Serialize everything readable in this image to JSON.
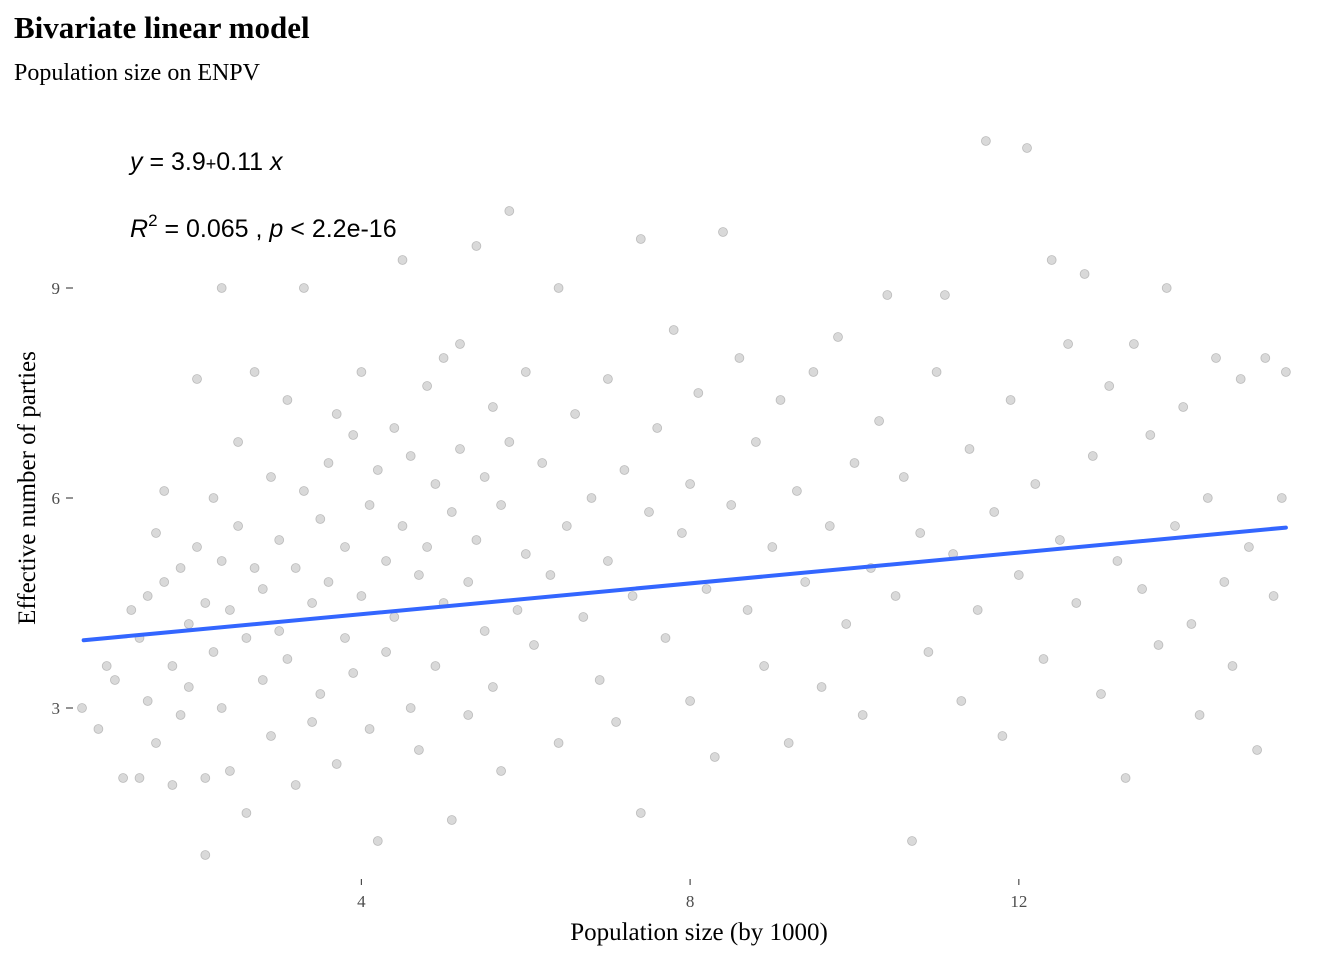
{
  "chart_data": {
    "type": "scatter",
    "title": "Bivariate linear model",
    "subtitle": "Population size on ENPV",
    "xlabel": "Population size (by 1000)",
    "ylabel": "Effective number of parties",
    "xlim": [
      0.6,
      15.3
    ],
    "ylim": [
      0.6,
      11.4
    ],
    "x_ticks": [
      4,
      8,
      12
    ],
    "y_ticks": [
      3,
      6,
      9
    ],
    "grid": false,
    "legend": "none",
    "annotations": {
      "equation": {
        "y": "y",
        "eq": " = 3.9",
        "plus": "+",
        "slope": "0.11 ",
        "x": "x"
      },
      "stats": {
        "r": "R",
        "sup": "2",
        "r2": " = 0.065 , ",
        "p": "p",
        "pval": " < 2.2e-16"
      }
    },
    "regression": {
      "intercept": 3.9,
      "slope": 0.11,
      "x_range": [
        0.62,
        15.25
      ],
      "color": "#3366FF"
    },
    "points_color": "#000000",
    "points_alpha": 0.15,
    "points": [
      [
        0.6,
        3.0
      ],
      [
        0.8,
        2.7
      ],
      [
        0.9,
        3.6
      ],
      [
        1.0,
        3.4
      ],
      [
        1.1,
        2.0
      ],
      [
        1.2,
        4.4
      ],
      [
        1.3,
        4.0
      ],
      [
        1.3,
        2.0
      ],
      [
        1.4,
        4.6
      ],
      [
        1.4,
        3.1
      ],
      [
        1.5,
        5.5
      ],
      [
        1.5,
        2.5
      ],
      [
        1.6,
        6.1
      ],
      [
        1.6,
        4.8
      ],
      [
        1.7,
        3.6
      ],
      [
        1.7,
        1.9
      ],
      [
        1.8,
        5.0
      ],
      [
        1.8,
        2.9
      ],
      [
        1.9,
        4.2
      ],
      [
        1.9,
        3.3
      ],
      [
        2.0,
        7.7
      ],
      [
        2.0,
        5.3
      ],
      [
        2.1,
        4.5
      ],
      [
        2.1,
        2.0
      ],
      [
        2.1,
        0.9
      ],
      [
        2.2,
        6.0
      ],
      [
        2.2,
        3.8
      ],
      [
        2.3,
        9.0
      ],
      [
        2.3,
        5.1
      ],
      [
        2.3,
        3.0
      ],
      [
        2.4,
        4.4
      ],
      [
        2.4,
        2.1
      ],
      [
        2.5,
        6.8
      ],
      [
        2.5,
        5.6
      ],
      [
        2.6,
        4.0
      ],
      [
        2.6,
        1.5
      ],
      [
        2.7,
        7.8
      ],
      [
        2.7,
        5.0
      ],
      [
        2.8,
        4.7
      ],
      [
        2.8,
        3.4
      ],
      [
        2.9,
        6.3
      ],
      [
        2.9,
        2.6
      ],
      [
        3.0,
        5.4
      ],
      [
        3.0,
        4.1
      ],
      [
        3.1,
        7.4
      ],
      [
        3.1,
        3.7
      ],
      [
        3.2,
        5.0
      ],
      [
        3.2,
        1.9
      ],
      [
        3.3,
        9.0
      ],
      [
        3.3,
        6.1
      ],
      [
        3.4,
        4.5
      ],
      [
        3.4,
        2.8
      ],
      [
        3.5,
        5.7
      ],
      [
        3.5,
        3.2
      ],
      [
        3.6,
        6.5
      ],
      [
        3.6,
        4.8
      ],
      [
        3.7,
        7.2
      ],
      [
        3.7,
        2.2
      ],
      [
        3.8,
        5.3
      ],
      [
        3.8,
        4.0
      ],
      [
        3.9,
        6.9
      ],
      [
        3.9,
        3.5
      ],
      [
        4.0,
        7.8
      ],
      [
        4.0,
        4.6
      ],
      [
        4.1,
        5.9
      ],
      [
        4.1,
        2.7
      ],
      [
        4.2,
        6.4
      ],
      [
        4.2,
        1.1
      ],
      [
        4.3,
        5.1
      ],
      [
        4.3,
        3.8
      ],
      [
        4.4,
        7.0
      ],
      [
        4.4,
        4.3
      ],
      [
        4.5,
        9.4
      ],
      [
        4.5,
        5.6
      ],
      [
        4.6,
        6.6
      ],
      [
        4.6,
        3.0
      ],
      [
        4.7,
        4.9
      ],
      [
        4.7,
        2.4
      ],
      [
        4.8,
        7.6
      ],
      [
        4.8,
        5.3
      ],
      [
        4.9,
        6.2
      ],
      [
        4.9,
        3.6
      ],
      [
        5.0,
        8.0
      ],
      [
        5.0,
        4.5
      ],
      [
        5.1,
        5.8
      ],
      [
        5.1,
        1.4
      ],
      [
        5.2,
        8.2
      ],
      [
        5.2,
        6.7
      ],
      [
        5.3,
        4.8
      ],
      [
        5.3,
        2.9
      ],
      [
        5.4,
        9.6
      ],
      [
        5.4,
        5.4
      ],
      [
        5.5,
        6.3
      ],
      [
        5.5,
        4.1
      ],
      [
        5.6,
        7.3
      ],
      [
        5.6,
        3.3
      ],
      [
        5.7,
        5.9
      ],
      [
        5.7,
        2.1
      ],
      [
        5.8,
        10.1
      ],
      [
        5.8,
        6.8
      ],
      [
        5.9,
        4.4
      ],
      [
        6.0,
        7.8
      ],
      [
        6.0,
        5.2
      ],
      [
        6.1,
        3.9
      ],
      [
        6.2,
        6.5
      ],
      [
        6.3,
        4.9
      ],
      [
        6.4,
        9.0
      ],
      [
        6.4,
        2.5
      ],
      [
        6.5,
        5.6
      ],
      [
        6.6,
        7.2
      ],
      [
        6.7,
        4.3
      ],
      [
        6.8,
        6.0
      ],
      [
        6.9,
        3.4
      ],
      [
        7.0,
        7.7
      ],
      [
        7.0,
        5.1
      ],
      [
        7.1,
        2.8
      ],
      [
        7.2,
        6.4
      ],
      [
        7.3,
        4.6
      ],
      [
        7.4,
        9.7
      ],
      [
        7.4,
        1.5
      ],
      [
        7.5,
        5.8
      ],
      [
        7.6,
        7.0
      ],
      [
        7.7,
        4.0
      ],
      [
        7.8,
        8.4
      ],
      [
        7.9,
        5.5
      ],
      [
        8.0,
        3.1
      ],
      [
        8.0,
        6.2
      ],
      [
        8.1,
        7.5
      ],
      [
        8.2,
        4.7
      ],
      [
        8.3,
        2.3
      ],
      [
        8.4,
        9.8
      ],
      [
        8.5,
        5.9
      ],
      [
        8.6,
        8.0
      ],
      [
        8.7,
        4.4
      ],
      [
        8.8,
        6.8
      ],
      [
        8.9,
        3.6
      ],
      [
        9.0,
        5.3
      ],
      [
        9.1,
        7.4
      ],
      [
        9.2,
        2.5
      ],
      [
        9.3,
        6.1
      ],
      [
        9.4,
        4.8
      ],
      [
        9.5,
        7.8
      ],
      [
        9.6,
        3.3
      ],
      [
        9.7,
        5.6
      ],
      [
        9.8,
        8.3
      ],
      [
        9.9,
        4.2
      ],
      [
        10.0,
        6.5
      ],
      [
        10.1,
        2.9
      ],
      [
        10.2,
        5.0
      ],
      [
        10.3,
        7.1
      ],
      [
        10.4,
        8.9
      ],
      [
        10.5,
        4.6
      ],
      [
        10.6,
        6.3
      ],
      [
        10.7,
        1.1
      ],
      [
        10.8,
        5.5
      ],
      [
        10.9,
        3.8
      ],
      [
        11.0,
        7.8
      ],
      [
        11.1,
        8.9
      ],
      [
        11.2,
        5.2
      ],
      [
        11.3,
        3.1
      ],
      [
        11.4,
        6.7
      ],
      [
        11.5,
        4.4
      ],
      [
        11.6,
        11.1
      ],
      [
        11.7,
        5.8
      ],
      [
        11.8,
        2.6
      ],
      [
        11.9,
        7.4
      ],
      [
        12.0,
        4.9
      ],
      [
        12.1,
        11.0
      ],
      [
        12.2,
        6.2
      ],
      [
        12.3,
        3.7
      ],
      [
        12.4,
        9.4
      ],
      [
        12.5,
        5.4
      ],
      [
        12.6,
        8.2
      ],
      [
        12.7,
        4.5
      ],
      [
        12.8,
        9.2
      ],
      [
        12.9,
        6.6
      ],
      [
        13.0,
        3.2
      ],
      [
        13.1,
        7.6
      ],
      [
        13.2,
        5.1
      ],
      [
        13.3,
        2.0
      ],
      [
        13.4,
        8.2
      ],
      [
        13.5,
        4.7
      ],
      [
        13.6,
        6.9
      ],
      [
        13.7,
        3.9
      ],
      [
        13.8,
        9.0
      ],
      [
        13.9,
        5.6
      ],
      [
        14.0,
        7.3
      ],
      [
        14.1,
        4.2
      ],
      [
        14.2,
        2.9
      ],
      [
        14.3,
        6.0
      ],
      [
        14.4,
        8.0
      ],
      [
        14.5,
        4.8
      ],
      [
        14.6,
        3.6
      ],
      [
        14.7,
        7.7
      ],
      [
        14.8,
        5.3
      ],
      [
        14.9,
        2.4
      ],
      [
        15.0,
        8.0
      ],
      [
        15.1,
        4.6
      ],
      [
        15.2,
        6.0
      ],
      [
        15.25,
        7.8
      ]
    ]
  }
}
